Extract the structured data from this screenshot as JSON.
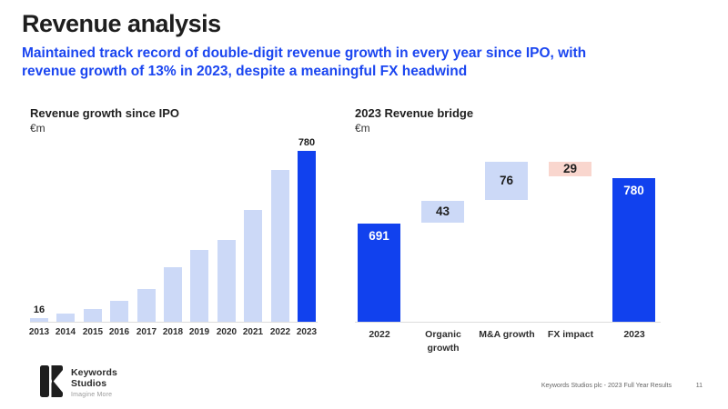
{
  "header": {
    "title": "Revenue analysis",
    "subtitle": "Maintained track record of double-digit revenue growth in every year since IPO, with\nrevenue growth of 13% in 2023, despite a meaningful FX headwind"
  },
  "colors": {
    "accent_blue": "#1141ee",
    "light_blue": "#ccd9f7",
    "light_pink": "#f9d6ce",
    "subtitle_blue": "#1b46f0",
    "axis_line": "#dcdcdc"
  },
  "chart_data": [
    {
      "type": "bar",
      "title": "Revenue growth since IPO",
      "unit": "€m",
      "categories": [
        "2013",
        "2014",
        "2015",
        "2016",
        "2017",
        "2018",
        "2019",
        "2020",
        "2021",
        "2022",
        "2023"
      ],
      "values": [
        16,
        37,
        58,
        97,
        151,
        251,
        326,
        374,
        512,
        691,
        780
      ],
      "value_labels": {
        "2013": "16",
        "2023": "780"
      },
      "highlight_category": "2023",
      "bar_color": "#ccd9f7",
      "highlight_color": "#1141ee",
      "ylim": [
        0,
        800
      ],
      "grid": false,
      "legend": "none"
    },
    {
      "type": "waterfall",
      "title": "2023 Revenue bridge",
      "unit": "€m",
      "steps": [
        {
          "label": "2022",
          "value": 691,
          "kind": "base",
          "color": "#1141ee"
        },
        {
          "label": "Organic\ngrowth",
          "value": 43,
          "kind": "increase",
          "color": "#ccd9f7"
        },
        {
          "label": "M&A growth",
          "value": 76,
          "kind": "increase",
          "color": "#ccd9f7"
        },
        {
          "label": "FX impact",
          "value": 29,
          "kind": "decrease",
          "color": "#f9d6ce"
        },
        {
          "label": "2023",
          "value": 780,
          "kind": "total",
          "color": "#1141ee"
        }
      ],
      "grid": false,
      "legend": "none"
    }
  ],
  "footer": {
    "logo_line1": "Keywords",
    "logo_line2": "Studios",
    "logo_tagline": "Imagine More",
    "doc_ref": "Keywords Studios plc - 2023 Full Year Results",
    "page_number": "11"
  }
}
